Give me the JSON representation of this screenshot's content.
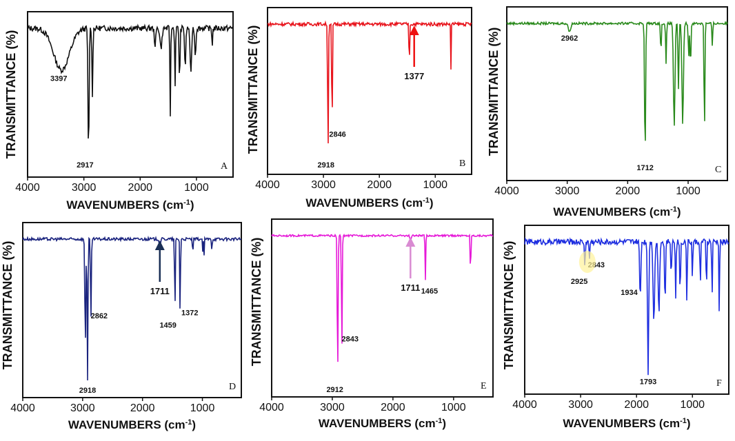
{
  "chart_data": [
    {
      "panel": "A",
      "type": "line",
      "color": "#111111",
      "xlabel": "WAVENUMBERS (cm-1)",
      "ylabel": "TRANSMITTANCE (%)",
      "xlim": [
        4000,
        350
      ],
      "xticks": [
        4000,
        3000,
        2000,
        1000
      ],
      "reversed_x": true,
      "peaks": [
        {
          "x": 3397,
          "depth": 0.3,
          "width": 200
        },
        {
          "x": 2917,
          "depth": 0.92,
          "width": 14
        },
        {
          "x": 2849,
          "depth": 0.48,
          "width": 12
        },
        {
          "x": 1735,
          "depth": 0.12,
          "width": 18
        },
        {
          "x": 1630,
          "depth": 0.14,
          "width": 25
        },
        {
          "x": 1465,
          "depth": 0.62,
          "width": 10
        },
        {
          "x": 1380,
          "depth": 0.42,
          "width": 10
        },
        {
          "x": 1300,
          "depth": 0.38,
          "width": 12
        },
        {
          "x": 1200,
          "depth": 0.28,
          "width": 15
        },
        {
          "x": 1100,
          "depth": 0.34,
          "width": 18
        },
        {
          "x": 1020,
          "depth": 0.2,
          "width": 15
        },
        {
          "x": 720,
          "depth": 0.12,
          "width": 10
        }
      ],
      "noise": 0.02,
      "annotations": [
        {
          "text": "3397",
          "x": 3397
        },
        {
          "text": "2917",
          "x": 2917
        }
      ]
    },
    {
      "panel": "B",
      "type": "line",
      "color": "#e8141c",
      "xlabel": "WAVENUMBERS (cm-1)",
      "ylabel": "TRANSMITTANCE (%)",
      "xlim": [
        4000,
        350
      ],
      "xticks": [
        4000,
        3000,
        2000,
        1000
      ],
      "reversed_x": true,
      "peaks": [
        {
          "x": 2918,
          "depth": 0.94,
          "width": 10
        },
        {
          "x": 2846,
          "depth": 0.82,
          "width": 9
        },
        {
          "x": 1465,
          "depth": 0.34,
          "width": 8
        },
        {
          "x": 720,
          "depth": 0.33,
          "width": 6
        }
      ],
      "noise": 0.012,
      "annotations": [
        {
          "text": "2918",
          "x": 2918
        },
        {
          "text": "2846",
          "x": 2846
        },
        {
          "text": "1377",
          "x": 1377,
          "arrow": true,
          "arrow_color": "#ee1111"
        }
      ]
    },
    {
      "panel": "C",
      "type": "line",
      "color": "#2a8a1c",
      "xlabel": "WAVENUMBERS (cm-1)",
      "ylabel": "TRANSMITTANCE (%)",
      "xlim": [
        4000,
        350
      ],
      "xticks": [
        4000,
        3000,
        2000,
        1000
      ],
      "reversed_x": true,
      "peaks": [
        {
          "x": 2962,
          "depth": 0.06,
          "width": 25
        },
        {
          "x": 1712,
          "depth": 0.92,
          "width": 12
        },
        {
          "x": 1450,
          "depth": 0.2,
          "width": 10
        },
        {
          "x": 1365,
          "depth": 0.28,
          "width": 10
        },
        {
          "x": 1230,
          "depth": 0.7,
          "width": 18
        },
        {
          "x": 1160,
          "depth": 0.45,
          "width": 12
        },
        {
          "x": 1090,
          "depth": 0.68,
          "width": 18
        },
        {
          "x": 990,
          "depth": 0.22,
          "width": 12
        },
        {
          "x": 960,
          "depth": 0.3,
          "width": 10
        },
        {
          "x": 730,
          "depth": 0.75,
          "width": 10
        },
        {
          "x": 600,
          "depth": 0.15,
          "width": 10
        }
      ],
      "noise": 0.008,
      "annotations": [
        {
          "text": "2962",
          "x": 2962
        },
        {
          "text": "1712",
          "x": 1712
        }
      ]
    },
    {
      "panel": "D",
      "type": "line",
      "color": "#1a237e",
      "xlabel": "WAVENUMBERS (cm-1)",
      "ylabel": "TRANSMITTANCE (%)",
      "xlim": [
        4000,
        350
      ],
      "xticks": [
        4000,
        3000,
        2000,
        1000
      ],
      "reversed_x": true,
      "peaks": [
        {
          "x": 2955,
          "depth": 0.7,
          "width": 12
        },
        {
          "x": 2918,
          "depth": 0.95,
          "width": 10
        },
        {
          "x": 2862,
          "depth": 0.55,
          "width": 10
        },
        {
          "x": 1711,
          "depth": 0.04,
          "width": 15
        },
        {
          "x": 1459,
          "depth": 0.52,
          "width": 8
        },
        {
          "x": 1372,
          "depth": 0.52,
          "width": 8
        },
        {
          "x": 1160,
          "depth": 0.1,
          "width": 8
        },
        {
          "x": 997,
          "depth": 0.1,
          "width": 6
        },
        {
          "x": 973,
          "depth": 0.12,
          "width": 6
        },
        {
          "x": 841,
          "depth": 0.1,
          "width": 6
        }
      ],
      "noise": 0.01,
      "annotations": [
        {
          "text": "2862",
          "x": 2862
        },
        {
          "text": "2918",
          "x": 2918
        },
        {
          "text": "1711",
          "x": 1711,
          "arrow": true,
          "arrow_color": "#1a2f55"
        },
        {
          "text": "1459",
          "x": 1459
        },
        {
          "text": "1372",
          "x": 1372
        }
      ]
    },
    {
      "panel": "E",
      "type": "line",
      "color": "#e619d8",
      "xlabel": "WAVENUMBERS (cm-1)",
      "ylabel": "TRANSMITTANCE (%)",
      "xlim": [
        4000,
        350
      ],
      "xticks": [
        4000,
        3000,
        2000,
        1000
      ],
      "reversed_x": true,
      "peaks": [
        {
          "x": 2912,
          "depth": 0.95,
          "width": 10
        },
        {
          "x": 2843,
          "depth": 0.78,
          "width": 9
        },
        {
          "x": 1711,
          "depth": 0.03,
          "width": 15
        },
        {
          "x": 1465,
          "depth": 0.3,
          "width": 8
        },
        {
          "x": 720,
          "depth": 0.4,
          "width": 6
        }
      ],
      "noise": 0.006,
      "annotations": [
        {
          "text": "2843",
          "x": 2843
        },
        {
          "text": "2912",
          "x": 2912
        },
        {
          "text": "1711",
          "x": 1711,
          "arrow": true,
          "arrow_color": "#d98bd2"
        },
        {
          "text": "1465",
          "x": 1465
        }
      ]
    },
    {
      "panel": "F",
      "type": "line",
      "color": "#1f2fe0",
      "xlabel": "WAVENUMBERS (cm-1)",
      "ylabel": "TRANSMITTANCE (%)",
      "xlim": [
        4000,
        350
      ],
      "xticks": [
        4000,
        3000,
        2000,
        1000
      ],
      "reversed_x": true,
      "peaks": [
        {
          "x": 2925,
          "depth": 0.16,
          "width": 12
        },
        {
          "x": 2843,
          "depth": 0.12,
          "width": 10
        },
        {
          "x": 1934,
          "depth": 0.4,
          "width": 15
        },
        {
          "x": 1793,
          "depth": 0.92,
          "width": 15
        },
        {
          "x": 1690,
          "depth": 0.55,
          "width": 20
        },
        {
          "x": 1600,
          "depth": 0.5,
          "width": 18
        },
        {
          "x": 1490,
          "depth": 0.45,
          "width": 12
        },
        {
          "x": 1380,
          "depth": 0.35,
          "width": 8
        },
        {
          "x": 1300,
          "depth": 0.38,
          "width": 10
        },
        {
          "x": 1220,
          "depth": 0.4,
          "width": 10
        },
        {
          "x": 1100,
          "depth": 0.42,
          "width": 10
        },
        {
          "x": 1000,
          "depth": 0.3,
          "width": 8
        },
        {
          "x": 860,
          "depth": 0.38,
          "width": 8
        },
        {
          "x": 750,
          "depth": 0.4,
          "width": 8
        },
        {
          "x": 650,
          "depth": 0.45,
          "width": 8
        },
        {
          "x": 520,
          "depth": 0.55,
          "width": 8
        }
      ],
      "noise": 0.02,
      "annotations": [
        {
          "text": "2843",
          "x": 2843
        },
        {
          "text": "2925",
          "x": 2925,
          "highlight": true
        },
        {
          "text": "1934",
          "x": 1934
        },
        {
          "text": "1793",
          "x": 1793
        }
      ]
    }
  ]
}
